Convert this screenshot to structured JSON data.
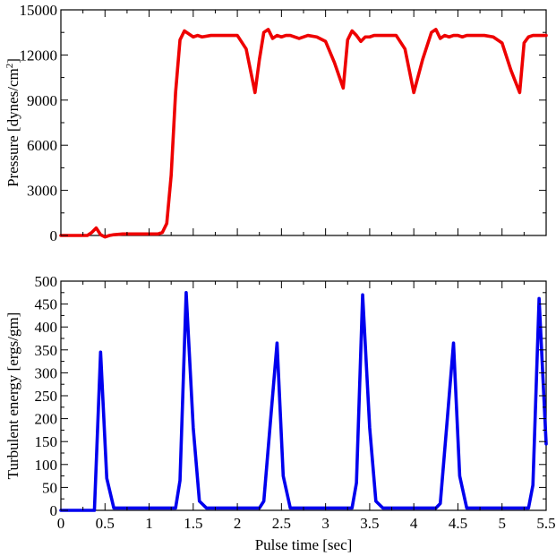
{
  "chart_data": [
    {
      "type": "line",
      "title": "",
      "xlabel": "",
      "ylabel": "Pressure [dynes/cm",
      "ylabel_sup": "2",
      "ylabel_close": "]",
      "xlim": [
        0,
        5.5
      ],
      "ylim": [
        0,
        15000
      ],
      "xticks": [],
      "yticks": [
        0,
        3000,
        6000,
        9000,
        12000,
        15000
      ],
      "ytick_labels": [
        "0",
        "3000",
        "6000",
        "9000",
        "12000",
        "15000"
      ],
      "grid": false,
      "legend": "none",
      "series": [
        {
          "color": "#ee0000",
          "x": [
            0,
            0.1,
            0.2,
            0.3,
            0.35,
            0.4,
            0.45,
            0.5,
            0.55,
            0.6,
            0.7,
            0.8,
            0.9,
            1.0,
            1.1,
            1.15,
            1.2,
            1.25,
            1.3,
            1.35,
            1.4,
            1.45,
            1.5,
            1.55,
            1.6,
            1.7,
            1.8,
            1.9,
            2.0,
            2.1,
            2.2,
            2.25,
            2.3,
            2.35,
            2.4,
            2.45,
            2.5,
            2.55,
            2.6,
            2.7,
            2.8,
            2.9,
            3.0,
            3.1,
            3.2,
            3.25,
            3.3,
            3.35,
            3.4,
            3.45,
            3.5,
            3.55,
            3.6,
            3.7,
            3.8,
            3.9,
            4.0,
            4.1,
            4.2,
            4.25,
            4.3,
            4.35,
            4.4,
            4.45,
            4.5,
            4.55,
            4.6,
            4.7,
            4.8,
            4.9,
            5.0,
            5.1,
            5.2,
            5.25,
            5.3,
            5.35,
            5.4,
            5.45,
            5.5
          ],
          "values": [
            0,
            0,
            0,
            0,
            200,
            500,
            50,
            -100,
            0,
            50,
            100,
            100,
            100,
            100,
            100,
            200,
            800,
            4000,
            9500,
            13000,
            13600,
            13400,
            13200,
            13300,
            13200,
            13300,
            13300,
            13300,
            13300,
            12400,
            9500,
            11700,
            13500,
            13700,
            13100,
            13300,
            13200,
            13300,
            13300,
            13100,
            13300,
            13200,
            12900,
            11500,
            9800,
            13000,
            13600,
            13300,
            12900,
            13200,
            13200,
            13300,
            13300,
            13300,
            13300,
            12400,
            9500,
            11700,
            13500,
            13700,
            13100,
            13300,
            13200,
            13300,
            13300,
            13200,
            13300,
            13300,
            13300,
            13200,
            12800,
            11000,
            9500,
            12800,
            13200,
            13300,
            13300,
            13300,
            13300
          ]
        }
      ]
    },
    {
      "type": "line",
      "title": "",
      "xlabel": "Pulse time [sec]",
      "ylabel": "Turbulent energy [ergs/gm]",
      "xlim": [
        0,
        5.5
      ],
      "ylim": [
        0,
        500
      ],
      "xticks": [
        0,
        0.5,
        1,
        1.5,
        2,
        2.5,
        3,
        3.5,
        4,
        4.5,
        5,
        5.5
      ],
      "xtick_labels": [
        "0",
        "0.5",
        "1",
        "1.5",
        "2",
        "2.5",
        "3",
        "3.5",
        "4",
        "4.5",
        "5",
        "5.5"
      ],
      "yticks": [
        0,
        50,
        100,
        150,
        200,
        250,
        300,
        350,
        400,
        450,
        500
      ],
      "ytick_labels": [
        "0",
        "50",
        "100",
        "150",
        "200",
        "250",
        "300",
        "350",
        "400",
        "450",
        "500"
      ],
      "grid": false,
      "legend": "none",
      "series": [
        {
          "color": "#0000ee",
          "x": [
            0,
            0.1,
            0.2,
            0.3,
            0.38,
            0.45,
            0.52,
            0.6,
            0.7,
            0.8,
            0.9,
            1.0,
            1.1,
            1.2,
            1.3,
            1.35,
            1.42,
            1.5,
            1.57,
            1.65,
            1.75,
            1.85,
            1.95,
            2.05,
            2.15,
            2.25,
            2.3,
            2.38,
            2.45,
            2.52,
            2.6,
            2.7,
            2.8,
            2.9,
            3.0,
            3.1,
            3.2,
            3.3,
            3.35,
            3.42,
            3.5,
            3.57,
            3.65,
            3.75,
            3.85,
            3.95,
            4.05,
            4.15,
            4.25,
            4.3,
            4.38,
            4.45,
            4.52,
            4.6,
            4.7,
            4.8,
            4.9,
            5.0,
            5.1,
            5.2,
            5.3,
            5.35,
            5.42,
            5.5
          ],
          "values": [
            0,
            0,
            0,
            0,
            0,
            345,
            70,
            5,
            5,
            5,
            5,
            5,
            5,
            5,
            5,
            65,
            475,
            180,
            20,
            5,
            5,
            5,
            5,
            5,
            5,
            5,
            20,
            205,
            365,
            75,
            5,
            5,
            5,
            5,
            5,
            5,
            5,
            5,
            60,
            470,
            180,
            20,
            5,
            5,
            5,
            5,
            5,
            5,
            5,
            15,
            200,
            365,
            75,
            5,
            5,
            5,
            5,
            5,
            5,
            5,
            5,
            55,
            462,
            145
          ]
        }
      ]
    }
  ]
}
